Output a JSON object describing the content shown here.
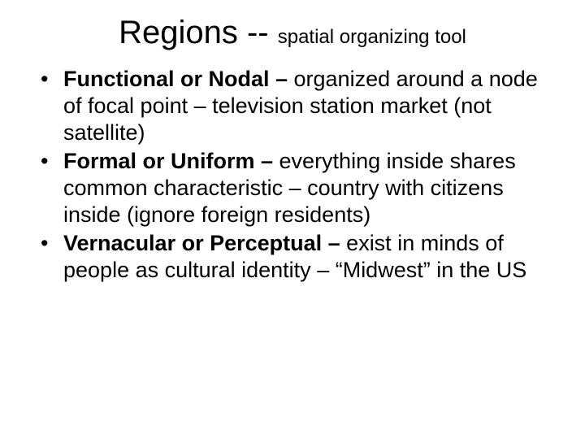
{
  "title": {
    "main": "Regions -- ",
    "sub": "spatial organizing tool"
  },
  "bullets": [
    {
      "lead": "Functional or Nodal – ",
      "rest": "organized around a node of focal point – television station market (not satellite)"
    },
    {
      "lead": "Formal or Uniform – ",
      "rest": "everything inside shares common characteristic – country with citizens inside (ignore foreign residents)"
    },
    {
      "lead": "Vernacular or Perceptual – ",
      "rest": "exist in minds of people as cultural identity – “Midwest” in the US"
    }
  ],
  "style": {
    "background_color": "#ffffff",
    "text_color": "#000000",
    "title_main_fontsize": 40,
    "title_sub_fontsize": 24,
    "body_fontsize": 27,
    "font_family": "Arial"
  }
}
